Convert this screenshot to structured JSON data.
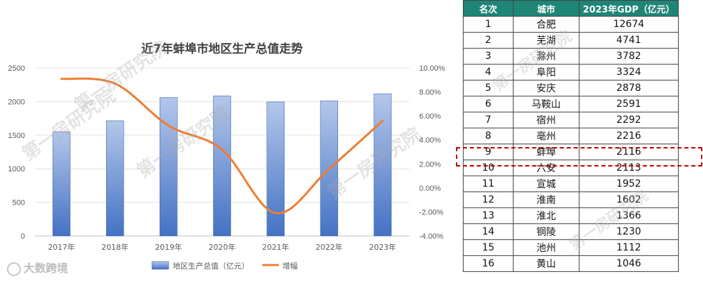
{
  "chart_data": {
    "type": "bar",
    "title": "近7年蚌埠市地区生产总值走势",
    "categories": [
      "2017年",
      "2018年",
      "2019年",
      "2020年",
      "2021年",
      "2022年",
      "2023年"
    ],
    "series": [
      {
        "name": "地区生产总值（亿元）",
        "type": "bar",
        "axis": "left",
        "values": [
          1550,
          1715,
          2060,
          2085,
          1995,
          2010,
          2116
        ]
      },
      {
        "name": "增幅",
        "type": "line",
        "axis": "right",
        "values": [
          0.091,
          0.087,
          0.052,
          0.032,
          -0.021,
          0.016,
          0.056
        ]
      }
    ],
    "ylim": [
      0,
      2500
    ],
    "yticks": [
      "0",
      "500",
      "1000",
      "1500",
      "2000",
      "2500"
    ],
    "y2lim": [
      -0.04,
      0.1
    ],
    "y2ticks": [
      "-4.00%",
      "-2.00%",
      "0.00%",
      "2.00%",
      "4.00%",
      "6.00%",
      "8.00%",
      "10.00%"
    ],
    "legend": "bottom",
    "colors": {
      "bar_top": "#b4c7ea",
      "bar_bottom": "#4472c4",
      "line": "#ed7d31"
    }
  },
  "watermark": "第一房研究院",
  "logo_text": "大数跨境",
  "table": {
    "headers": [
      "名次",
      "城市",
      "2023年GDP（亿元）"
    ],
    "rows": [
      [
        "1",
        "合肥",
        "12674"
      ],
      [
        "2",
        "芜湖",
        "4741"
      ],
      [
        "3",
        "滁州",
        "3782"
      ],
      [
        "4",
        "阜阳",
        "3324"
      ],
      [
        "5",
        "安庆",
        "2878"
      ],
      [
        "6",
        "马鞍山",
        "2591"
      ],
      [
        "7",
        "宿州",
        "2292"
      ],
      [
        "8",
        "亳州",
        "2216"
      ],
      [
        "9",
        "蚌埠",
        "2116"
      ],
      [
        "10",
        "六安",
        "2113"
      ],
      [
        "11",
        "宣城",
        "1952"
      ],
      [
        "12",
        "淮南",
        "1602"
      ],
      [
        "13",
        "淮北",
        "1366"
      ],
      [
        "14",
        "铜陵",
        "1230"
      ],
      [
        "15",
        "池州",
        "1112"
      ],
      [
        "16",
        "黄山",
        "1046"
      ]
    ],
    "highlight_rank": "9",
    "header_color": "#1f8577",
    "highlight_color": "#c00000"
  }
}
